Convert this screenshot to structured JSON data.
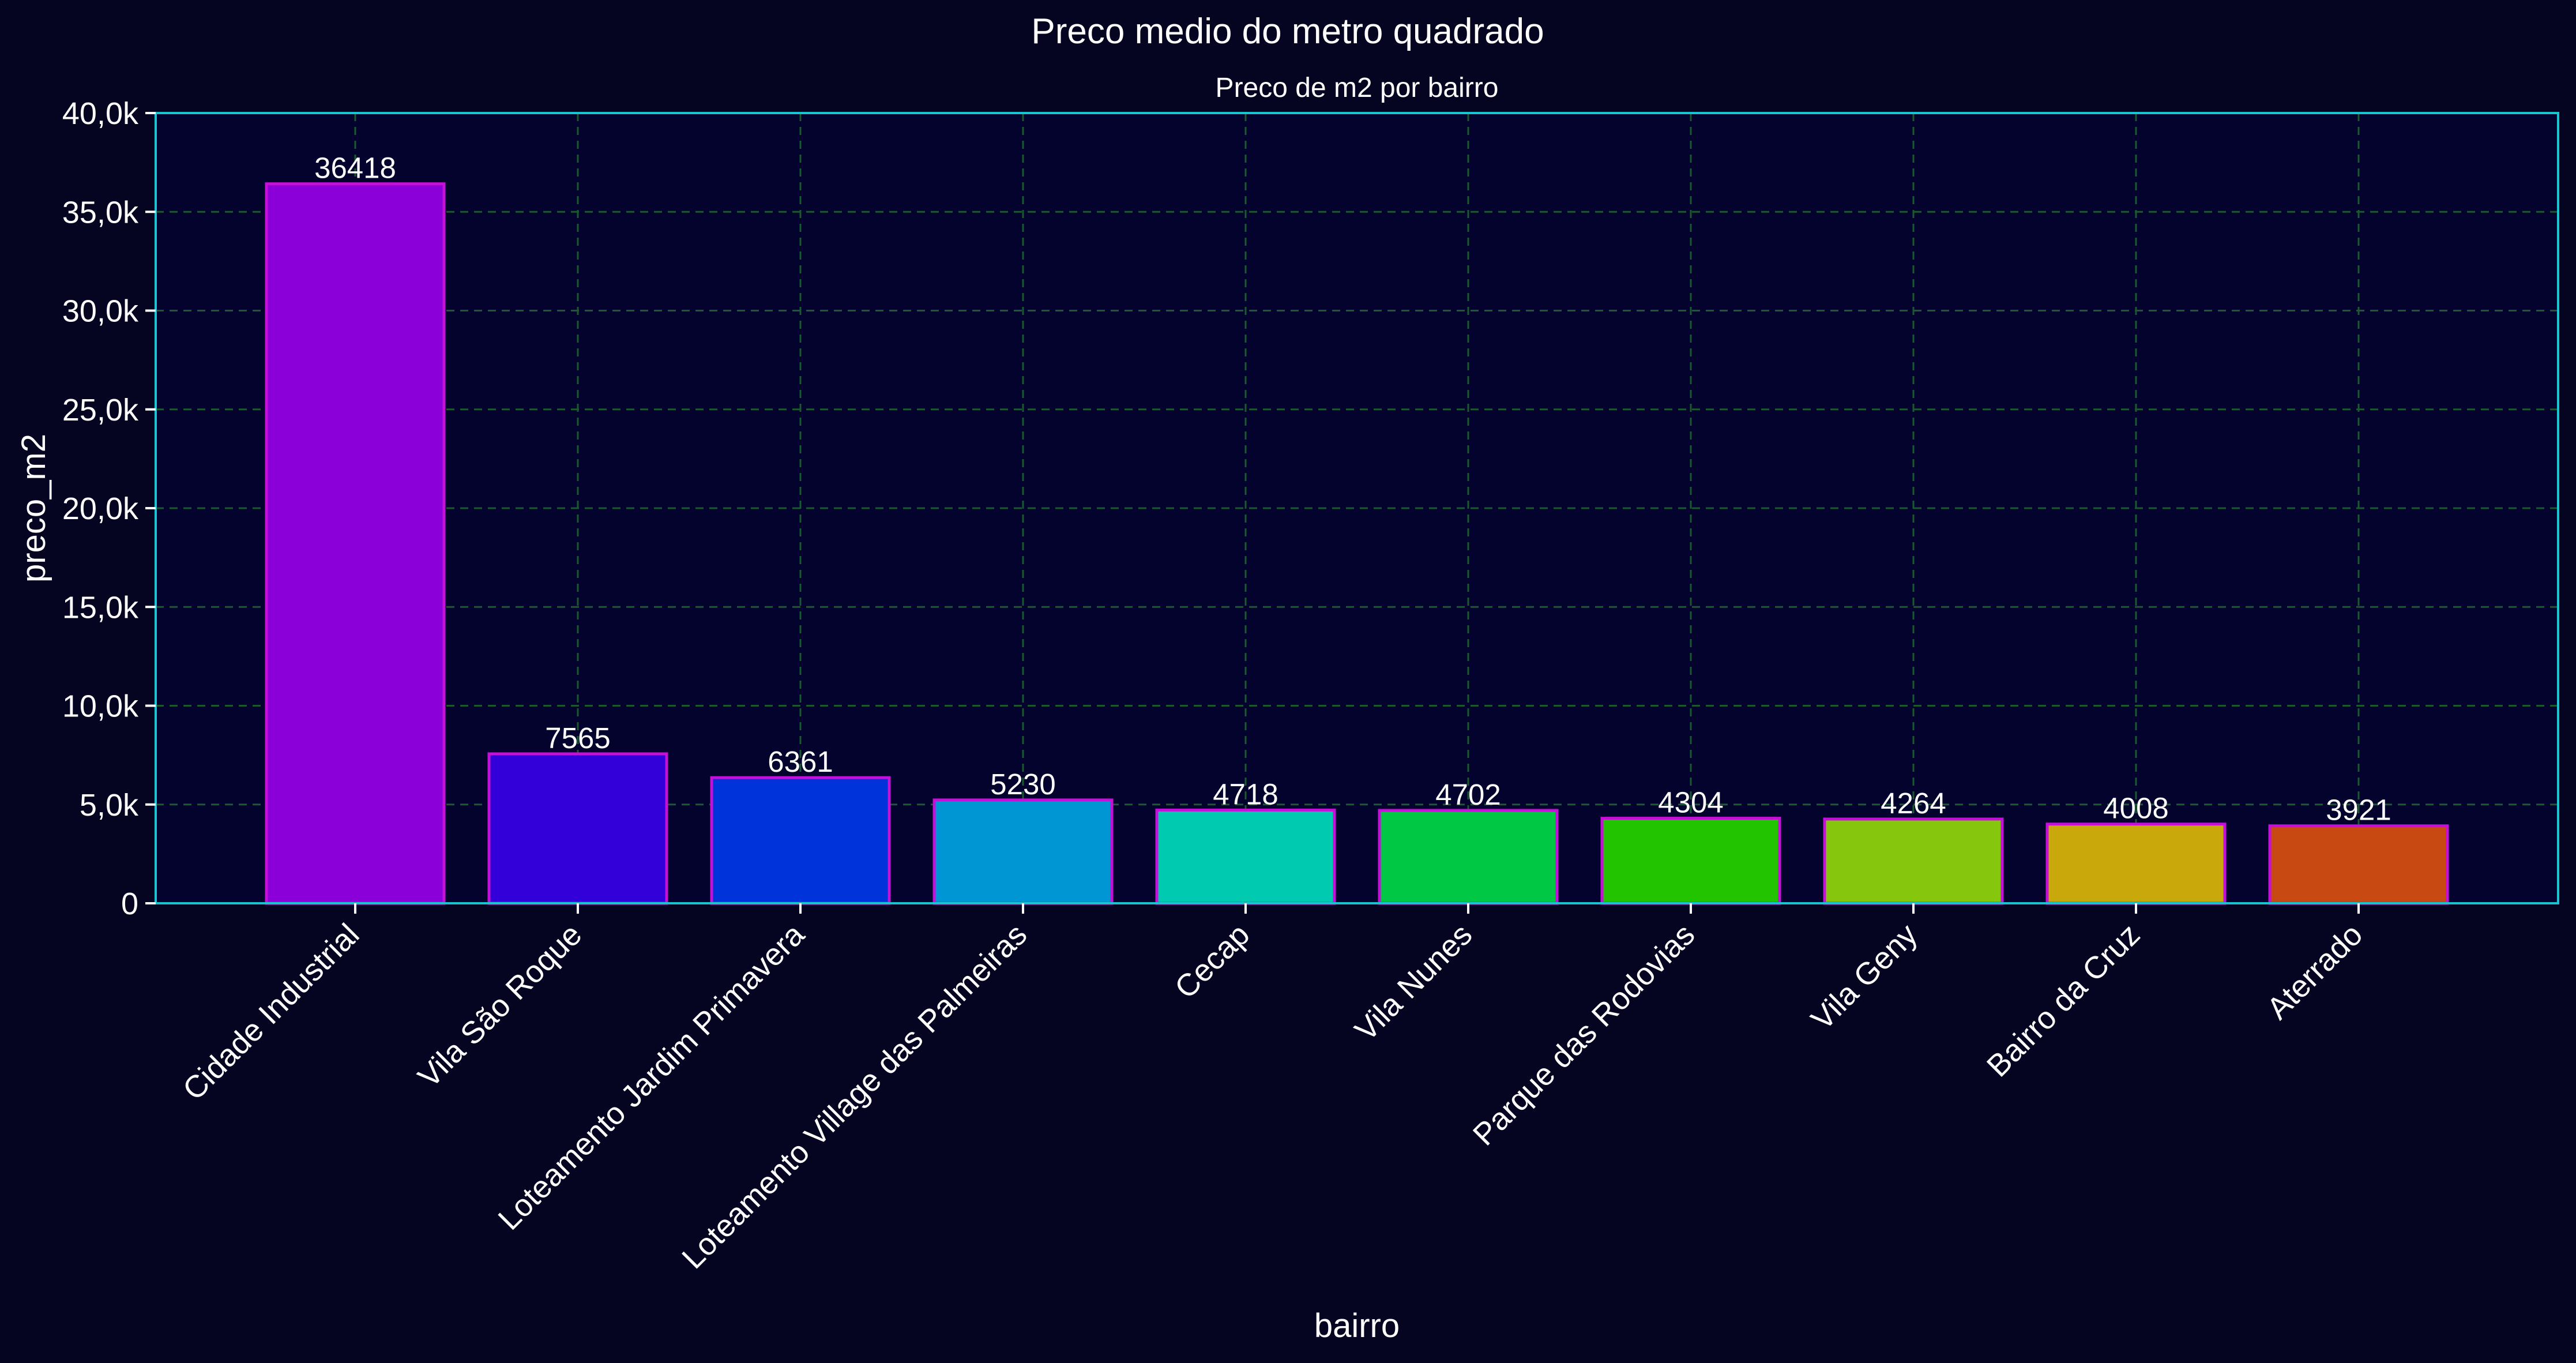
{
  "chart_data": {
    "type": "bar",
    "suptitle": "Preco medio do metro quadrado",
    "title": "Preco de m2 por bairro",
    "xlabel": "bairro",
    "ylabel": "preco_m2",
    "ylim": [
      0,
      40000
    ],
    "yticks": [
      0,
      5000,
      10000,
      15000,
      20000,
      25000,
      30000,
      35000,
      40000
    ],
    "ytick_labels": [
      "0",
      "5,0k",
      "10,0k",
      "15,0k",
      "20,0k",
      "25,0k",
      "30,0k",
      "35,0k",
      "40,0k"
    ],
    "grid": true,
    "categories": [
      "Cidade Industrial",
      "Vila São Roque",
      "Loteamento Jardim Primavera",
      "Loteamento Village das Palmeiras",
      "Cecap",
      "Vila Nunes",
      "Parque das Rodovias",
      "Vila Geny",
      "Bairro da Cruz",
      "Aterrado"
    ],
    "values": [
      36418,
      7565,
      6361,
      5230,
      4718,
      4702,
      4304,
      4264,
      4008,
      3921
    ],
    "value_labels": [
      "36418",
      "7565",
      "6361",
      "5230",
      "4718",
      "4702",
      "4304",
      "4264",
      "4008",
      "3921"
    ],
    "bar_colors": [
      "#8b00d9",
      "#3300d9",
      "#0033d9",
      "#0096d4",
      "#00cbb0",
      "#00c844",
      "#22c400",
      "#86c60c",
      "#c9a80b",
      "#c84a12"
    ],
    "bar_edge_color": "#c510d8",
    "axes_edge_color": "#19c3cf",
    "axes_face_color": "#03032e",
    "figure_background": "#050522",
    "grid_color": "#1a5a2e"
  }
}
